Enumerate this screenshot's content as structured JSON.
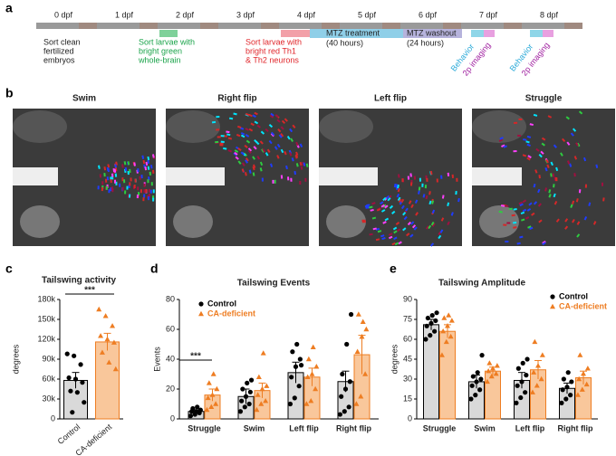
{
  "timeline": {
    "days": [
      "0 dpf",
      "1 dpf",
      "2 dpf",
      "3 dpf",
      "4 dpf",
      "5 dpf",
      "6 dpf",
      "7 dpf",
      "8 dpf"
    ],
    "steps": [
      [
        "Sort clean",
        "fertilized",
        "embryos"
      ],
      [
        "Sort larvae with",
        "bright green",
        "whole-brain"
      ],
      [
        "Sort larvae with",
        "bright red Th1",
        "& Th2 neurons"
      ]
    ],
    "treatment": [
      "MTZ treatment",
      "(40 hours)"
    ],
    "washout": [
      "MTZ washout",
      "(24 hours)"
    ],
    "assays": [
      "Behavior",
      "2p imaging"
    ]
  },
  "panels": [
    "a",
    "b",
    "c",
    "d",
    "e"
  ],
  "images": {
    "titles": [
      "Swim",
      "Right flip",
      "Left flip",
      "Struggle"
    ]
  },
  "chart_data": [
    {
      "type": "bar",
      "title": "Tailswing activity",
      "ylabel": "degrees",
      "categories": [
        "Control",
        "CA-deficient"
      ],
      "values": [
        58000,
        116000
      ],
      "errors": [
        12000,
        13000
      ],
      "colors": [
        "#d9d9d9",
        "#f9c79b"
      ],
      "edge_colors": [
        "#000000",
        "#ee7d22"
      ],
      "markers": [
        "circle",
        "triangle"
      ],
      "points": [
        [
          98000,
          95000,
          82000,
          62000,
          60000,
          55000,
          42000,
          40000,
          25000,
          10000
        ],
        [
          165000,
          155000,
          140000,
          125000,
          120000,
          115000,
          100000,
          85000,
          75000
        ]
      ],
      "ylim": [
        0,
        180000
      ],
      "yticks": [
        0,
        {
          "value": 30000,
          "label": "30k"
        },
        {
          "value": 60000,
          "label": "60k"
        },
        {
          "value": 90000,
          "label": "90k"
        },
        {
          "value": 120000,
          "label": "120k"
        },
        {
          "value": 150000,
          "label": "150k"
        },
        {
          "value": 180000,
          "label": "180k"
        }
      ],
      "annotations": [
        "***"
      ]
    },
    {
      "type": "bar",
      "title": "Tailswing Events",
      "ylabel": "Events",
      "categories": [
        "Struggle",
        "Swim",
        "Left flip",
        "Right flip"
      ],
      "series": [
        {
          "name": "Control",
          "color": "#d9d9d9",
          "edge_color": "#000000",
          "marker": "circle",
          "values": [
            5,
            15,
            31,
            25
          ],
          "errors": [
            1,
            5,
            7,
            7
          ],
          "points": [
            [
              2,
              3,
              4,
              5,
              5,
              6,
              7,
              8
            ],
            [
              5,
              8,
              10,
              12,
              15,
              18,
              20,
              24,
              26
            ],
            [
              10,
              14,
              22,
              28,
              35,
              40,
              45,
              50,
              36
            ],
            [
              3,
              5,
              8,
              15,
              20,
              25,
              30,
              50,
              70
            ]
          ]
        },
        {
          "name": "CA-deficient",
          "color": "#f9c79b",
          "edge_color": "#ee7d22",
          "marker": "triangle",
          "values": [
            16,
            19,
            28,
            43
          ],
          "errors": [
            4,
            5,
            6,
            13
          ],
          "points": [
            [
              6,
              8,
              10,
              14,
              16,
              20,
              24,
              30
            ],
            [
              6,
              10,
              12,
              16,
              20,
              22,
              28,
              44
            ],
            [
              10,
              12,
              20,
              28,
              30,
              35,
              40,
              48
            ],
            [
              10,
              15,
              30,
              45,
              55,
              60,
              70,
              65
            ]
          ]
        }
      ],
      "ylim": [
        0,
        80
      ],
      "yticks": [
        0,
        20,
        40,
        60,
        80
      ],
      "annotations": [
        "***"
      ],
      "legend": "upper left"
    },
    {
      "type": "bar",
      "title": "Tailswing Amplitude",
      "ylabel": "degrees",
      "categories": [
        "Struggle",
        "Swim",
        "Left flip",
        "Right flip"
      ],
      "series": [
        {
          "name": "Control",
          "color": "#d9d9d9",
          "edge_color": "#000000",
          "marker": "circle",
          "values": [
            71,
            28,
            29,
            23
          ],
          "errors": [
            4,
            5,
            6,
            4
          ],
          "points": [
            [
              60,
              63,
              66,
              70,
              72,
              74,
              76,
              78,
              80
            ],
            [
              15,
              18,
              22,
              25,
              28,
              30,
              32,
              35,
              48
            ],
            [
              12,
              16,
              20,
              25,
              28,
              33,
              38,
              42,
              45
            ],
            [
              12,
              15,
              18,
              22,
              24,
              28,
              30,
              35
            ]
          ]
        },
        {
          "name": "CA-deficient",
          "color": "#f9c79b",
          "edge_color": "#ee7d22",
          "marker": "triangle",
          "values": [
            66,
            36,
            37,
            31
          ],
          "errors": [
            5,
            3,
            7,
            5
          ],
          "points": [
            [
              48,
              58,
              62,
              66,
              70,
              74,
              76,
              78
            ],
            [
              28,
              32,
              34,
              36,
              38,
              40,
              42
            ],
            [
              20,
              25,
              30,
              35,
              40,
              48,
              58
            ],
            [
              18,
              22,
              26,
              30,
              34,
              38,
              48
            ]
          ]
        }
      ],
      "ylim": [
        0,
        90
      ],
      "yticks": [
        0,
        15,
        30,
        45,
        60,
        75,
        90
      ],
      "legend": "upper right"
    }
  ]
}
